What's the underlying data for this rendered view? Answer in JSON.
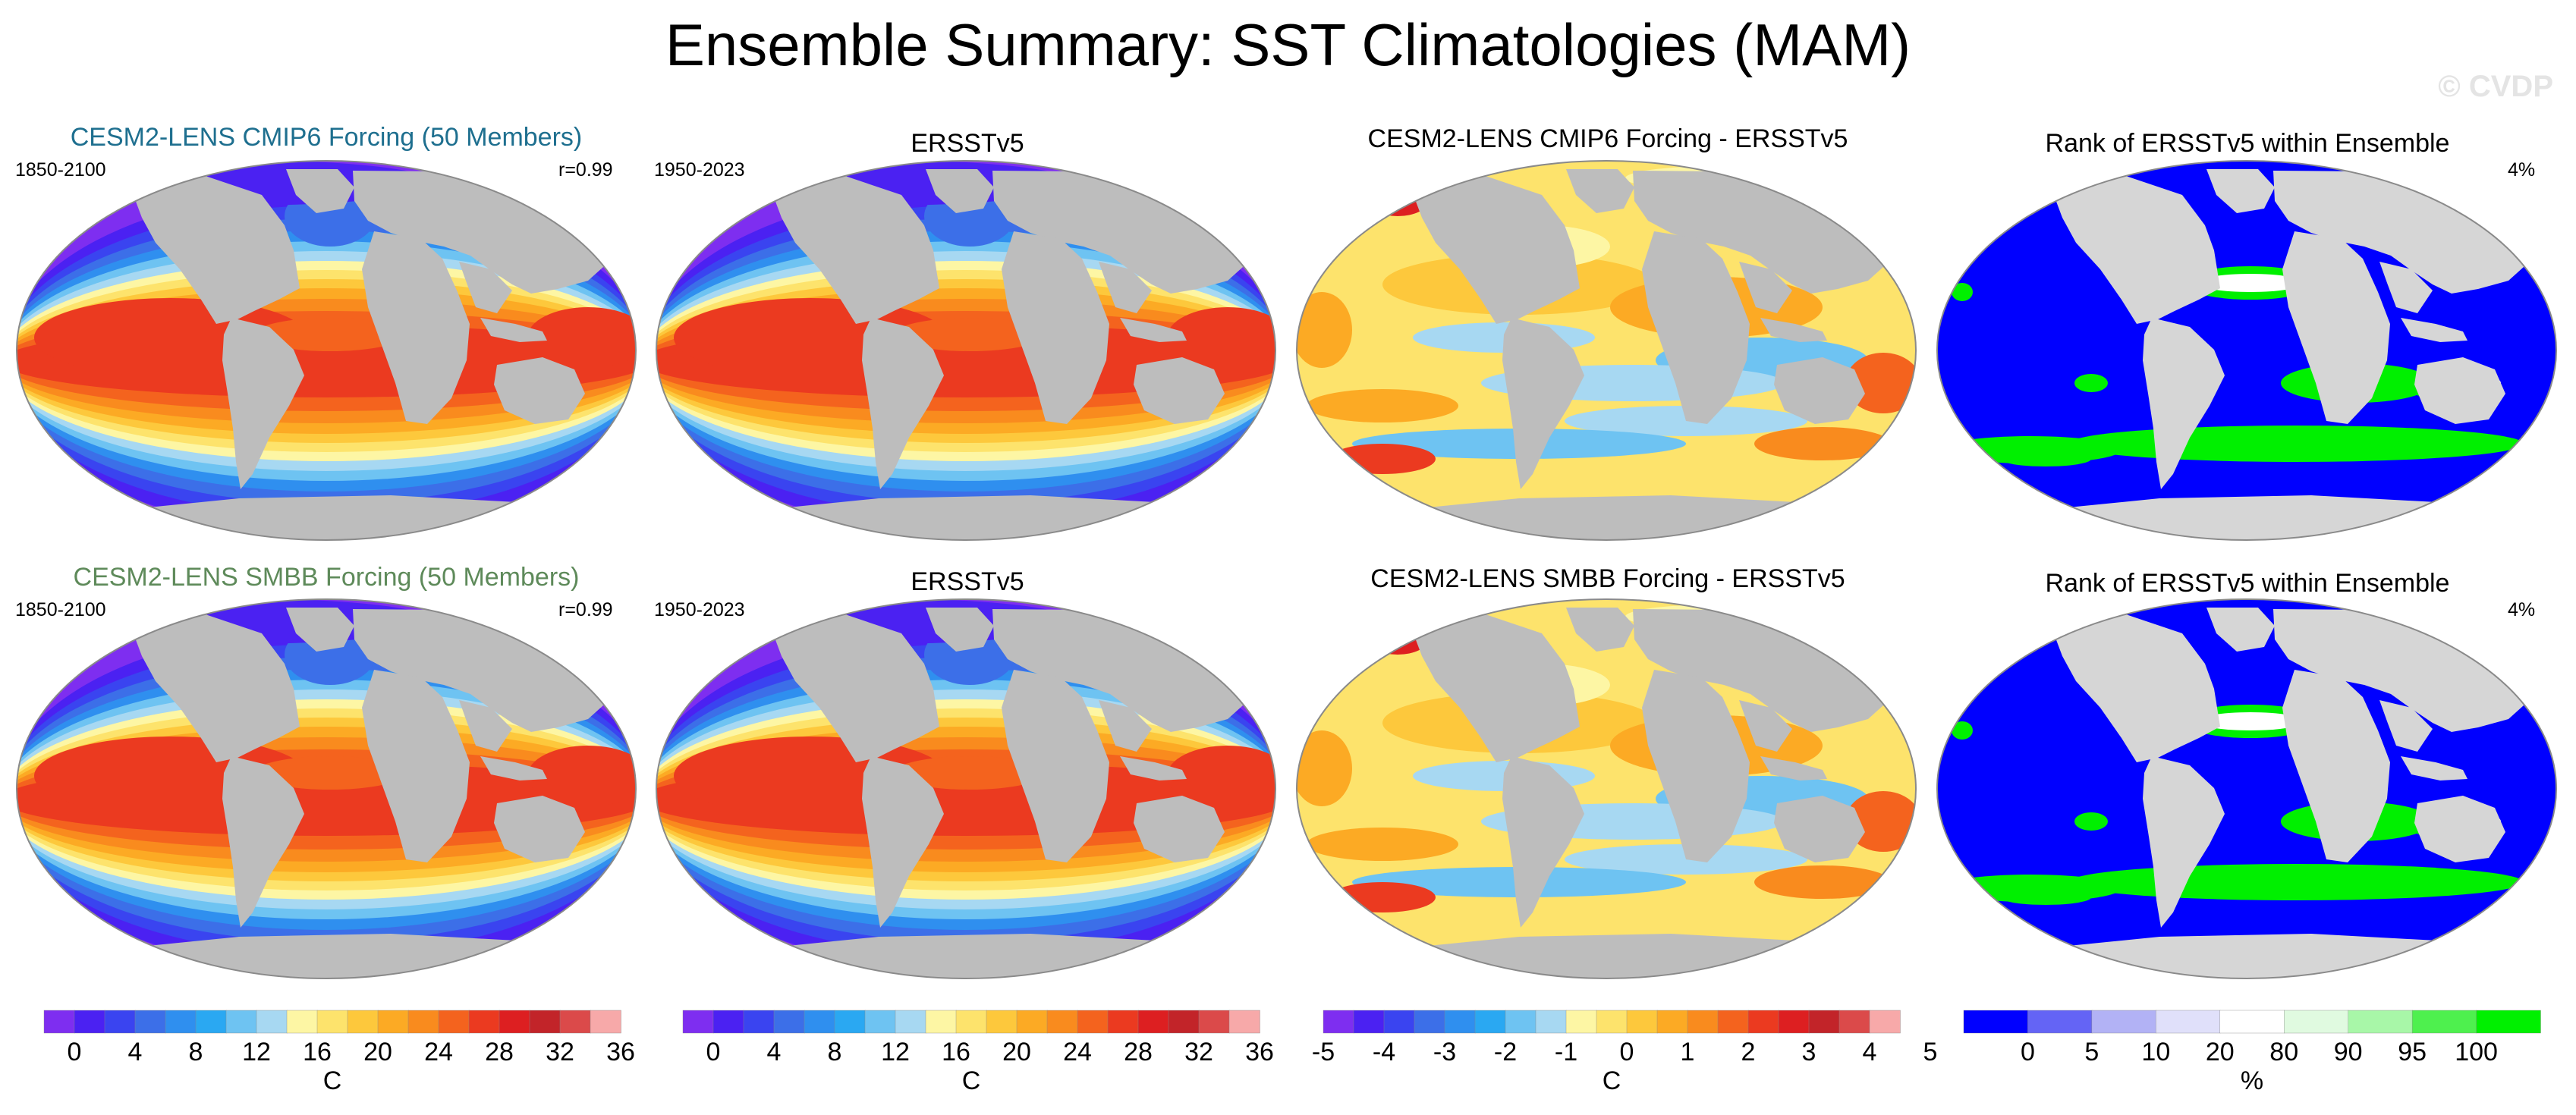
{
  "title": "Ensemble Summary: SST Climatologies (MAM)",
  "watermark": "© CVDP",
  "rows": [
    {
      "ensemble_title": "CESM2-LENS CMIP6 Forcing (50 Members)",
      "ensemble_title_color": "#1e6f8f",
      "ensemble_years": "1850-2100",
      "pattern_corr": "r=0.99",
      "obs_title": "ERSSTv5",
      "obs_years": "1950-2023",
      "diff_title": "CESM2-LENS CMIP6 Forcing - ERSSTv5",
      "rank_title": "Rank of ERSSTv5 within Ensemble",
      "rank_pct": "4%"
    },
    {
      "ensemble_title": "CESM2-LENS SMBB Forcing (50 Members)",
      "ensemble_title_color": "#5e8a5a",
      "ensemble_years": "1850-2100",
      "pattern_corr": "r=0.99",
      "obs_title": "ERSSTv5",
      "obs_years": "1950-2023",
      "diff_title": "CESM2-LENS SMBB Forcing - ERSSTv5",
      "rank_title": "Rank of ERSSTv5 within Ensemble",
      "rank_pct": "4%"
    }
  ],
  "colorbars": {
    "sst": {
      "labels": [
        "0",
        "4",
        "8",
        "12",
        "16",
        "20",
        "24",
        "28",
        "32",
        "36"
      ],
      "colors": [
        "#7e2ef0",
        "#4b21f2",
        "#3a44f0",
        "#3c6fe8",
        "#2f8fef",
        "#2aa8f2",
        "#6ec3f2",
        "#a7d8f2",
        "#fdf6a4",
        "#fde36c",
        "#fdc83c",
        "#fcaa24",
        "#f98b1e",
        "#f4631e",
        "#eb3a20",
        "#dd1f21",
        "#c22429",
        "#db4a4a",
        "#f7a9a9"
      ],
      "unit": "C"
    },
    "diff": {
      "labels": [
        "-5",
        "-4",
        "-3",
        "-2",
        "-1",
        "0",
        "1",
        "2",
        "3",
        "4",
        "5"
      ],
      "colors": [
        "#7e2ef0",
        "#4b21f2",
        "#3a44f0",
        "#3c6fe8",
        "#2f8fef",
        "#2aa8f2",
        "#6ec3f2",
        "#a7d8f2",
        "#fdf6a4",
        "#fde36c",
        "#fdc83c",
        "#fcaa24",
        "#f98b1e",
        "#f4631e",
        "#eb3a20",
        "#dd1f21",
        "#c22429",
        "#db4a4a",
        "#f7a9a9"
      ],
      "unit": "C"
    },
    "rank": {
      "labels": [
        "0",
        "5",
        "10",
        "20",
        "80",
        "90",
        "95",
        "100"
      ],
      "colors": [
        "#0000ff",
        "#6464f5",
        "#b2b2f5",
        "#e0e0fa",
        "#ffffff",
        "#e0fae0",
        "#a8f7a8",
        "#4ef04e",
        "#00f000"
      ],
      "unit": "%"
    }
  },
  "chart_data": [
    {
      "type": "heatmap",
      "title": "CESM2-LENS CMIP6 Forcing (50 Members)",
      "subtitle": "1850-2100",
      "annotation": "r=0.99",
      "colorbar_unit": "C",
      "colorbar_range": [
        0,
        36
      ]
    },
    {
      "type": "heatmap",
      "title": "ERSSTv5",
      "subtitle": "1950-2023",
      "colorbar_unit": "C",
      "colorbar_range": [
        0,
        36
      ]
    },
    {
      "type": "heatmap",
      "title": "CESM2-LENS CMIP6 Forcing - ERSSTv5",
      "colorbar_unit": "C",
      "colorbar_range": [
        -5,
        5
      ]
    },
    {
      "type": "heatmap",
      "title": "Rank of ERSSTv5 within Ensemble",
      "annotation": "4%",
      "colorbar_unit": "%",
      "colorbar_range": [
        0,
        100
      ]
    },
    {
      "type": "heatmap",
      "title": "CESM2-LENS SMBB Forcing (50 Members)",
      "subtitle": "1850-2100",
      "annotation": "r=0.99",
      "colorbar_unit": "C",
      "colorbar_range": [
        0,
        36
      ]
    },
    {
      "type": "heatmap",
      "title": "ERSSTv5",
      "subtitle": "1950-2023",
      "colorbar_unit": "C",
      "colorbar_range": [
        0,
        36
      ]
    },
    {
      "type": "heatmap",
      "title": "CESM2-LENS SMBB Forcing - ERSSTv5",
      "colorbar_unit": "C",
      "colorbar_range": [
        -5,
        5
      ]
    },
    {
      "type": "heatmap",
      "title": "Rank of ERSSTv5 within Ensemble",
      "annotation": "4%",
      "colorbar_unit": "%",
      "colorbar_range": [
        0,
        100
      ]
    }
  ]
}
